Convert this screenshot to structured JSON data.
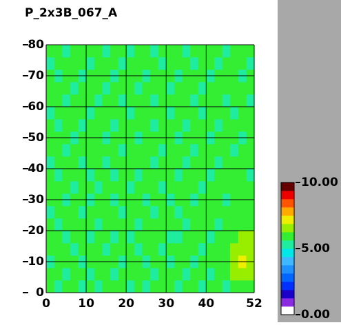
{
  "chart_data": {
    "type": "heatmap",
    "title": "P_2x3B_067_A",
    "xlim": [
      0,
      52
    ],
    "ylim": [
      0,
      80
    ],
    "xticks": [
      0,
      10,
      20,
      30,
      40,
      52
    ],
    "yticks": [
      0,
      10,
      20,
      30,
      40,
      50,
      60,
      70,
      80
    ],
    "grid": true,
    "values": [
      [
        5.7,
        5.5,
        5.8,
        5.9,
        5.6,
        5.7,
        5.4,
        5.8,
        5.9,
        5.7,
        5.6,
        5.8,
        5.5,
        5.9,
        5.7,
        5.8,
        5.6,
        5.7,
        5.9,
        5.5,
        5.8,
        5.7,
        5.6,
        5.9,
        6.0,
        5.8
      ],
      [
        5.8,
        5.9,
        5.6,
        5.7,
        5.8,
        5.5,
        5.9,
        5.7,
        5.6,
        5.8,
        5.9,
        5.7,
        5.8,
        5.6,
        5.9,
        5.7,
        5.8,
        5.5,
        5.7,
        5.9,
        5.6,
        5.8,
        6.0,
        6.6,
        6.8,
        6.3
      ],
      [
        5.6,
        5.8,
        5.9,
        5.7,
        5.5,
        5.8,
        5.7,
        5.9,
        5.8,
        5.6,
        5.7,
        5.9,
        5.6,
        5.8,
        5.7,
        5.5,
        5.9,
        5.8,
        5.6,
        5.7,
        5.9,
        5.8,
        5.9,
        6.7,
        6.9,
        6.5
      ],
      [
        5.9,
        5.7,
        5.8,
        5.6,
        5.9,
        5.7,
        5.8,
        5.6,
        5.7,
        5.9,
        5.8,
        5.5,
        5.9,
        5.7,
        5.6,
        5.8,
        5.7,
        5.9,
        5.8,
        5.6,
        5.7,
        5.9,
        6.1,
        6.5,
        6.7,
        6.4
      ],
      [
        5.7,
        5.8,
        5.5,
        5.9,
        5.7,
        5.6,
        5.9,
        5.8,
        5.5,
        5.7,
        5.6,
        5.8,
        5.7,
        5.9,
        5.8,
        5.6,
        5.5,
        5.7,
        5.9,
        5.8,
        5.6,
        5.7,
        5.8,
        6.2,
        6.5,
        6.3
      ],
      [
        5.8,
        5.6,
        5.9,
        5.7,
        5.8,
        5.9,
        5.6,
        5.7,
        5.8,
        5.9,
        5.7,
        5.6,
        5.8,
        5.7,
        5.9,
        5.8,
        5.7,
        5.6,
        5.8,
        5.7,
        5.9,
        5.6,
        5.8,
        5.9,
        6.1,
        5.9
      ],
      [
        5.6,
        5.9,
        5.7,
        5.8,
        5.6,
        5.7,
        5.8,
        5.9,
        5.7,
        5.6,
        5.8,
        5.9,
        5.7,
        5.5,
        5.8,
        5.9,
        5.6,
        5.8,
        5.7,
        5.9,
        5.8,
        5.7,
        5.9,
        5.8,
        6.0,
        5.8
      ],
      [
        5.9,
        5.7,
        5.6,
        5.8,
        5.9,
        5.5,
        5.7,
        5.8,
        5.6,
        5.9,
        5.7,
        5.8,
        5.6,
        5.9,
        5.7,
        5.6,
        5.8,
        5.9,
        5.5,
        5.8,
        5.7,
        5.9,
        5.6,
        5.8,
        5.9,
        5.7
      ],
      [
        5.7,
        5.8,
        5.9,
        5.6,
        5.7,
        5.8,
        5.6,
        5.9,
        5.8,
        5.7,
        5.5,
        5.7,
        5.9,
        5.8,
        5.6,
        5.7,
        5.9,
        5.7,
        5.8,
        5.6,
        5.9,
        5.8,
        5.7,
        5.9,
        5.8,
        5.9
      ],
      [
        5.8,
        5.6,
        5.7,
        5.9,
        5.8,
        5.6,
        5.9,
        5.7,
        5.6,
        5.8,
        5.9,
        5.6,
        5.7,
        5.8,
        5.9,
        5.7,
        5.5,
        5.8,
        5.9,
        5.7,
        5.6,
        5.8,
        5.9,
        5.7,
        5.8,
        5.6
      ],
      [
        5.6,
        5.9,
        5.8,
        5.7,
        5.5,
        5.9,
        5.8,
        5.6,
        5.7,
        5.9,
        5.8,
        5.7,
        5.9,
        5.6,
        5.8,
        5.9,
        5.7,
        5.6,
        5.8,
        5.9,
        5.7,
        5.6,
        5.8,
        5.9,
        5.7,
        5.8
      ],
      [
        5.9,
        5.7,
        5.6,
        5.8,
        5.7,
        5.8,
        5.7,
        5.9,
        5.8,
        5.6,
        5.7,
        5.9,
        5.8,
        5.7,
        5.6,
        5.8,
        5.9,
        5.7,
        5.6,
        5.8,
        5.9,
        5.7,
        5.8,
        5.6,
        5.9,
        5.7
      ],
      [
        5.7,
        5.8,
        5.9,
        5.6,
        5.8,
        5.7,
        5.9,
        5.5,
        5.9,
        5.7,
        5.8,
        5.6,
        5.7,
        5.9,
        5.8,
        5.7,
        5.6,
        5.9,
        5.8,
        5.7,
        5.5,
        5.9,
        5.7,
        5.8,
        5.6,
        5.9
      ],
      [
        5.8,
        5.6,
        5.7,
        5.9,
        5.6,
        5.8,
        5.7,
        5.8,
        5.6,
        5.9,
        5.7,
        5.8,
        5.9,
        5.6,
        5.7,
        5.9,
        5.8,
        5.6,
        5.7,
        5.9,
        5.8,
        5.6,
        5.9,
        5.7,
        5.8,
        5.7
      ],
      [
        5.6,
        5.9,
        5.8,
        5.7,
        5.9,
        5.6,
        5.8,
        5.7,
        5.9,
        5.8,
        5.6,
        5.7,
        5.8,
        5.9,
        5.7,
        5.6,
        5.8,
        5.9,
        5.7,
        5.6,
        5.8,
        5.9,
        5.7,
        5.6,
        5.9,
        5.8
      ],
      [
        5.9,
        5.7,
        5.6,
        5.8,
        5.7,
        5.9,
        5.6,
        5.8,
        5.7,
        5.6,
        5.9,
        5.8,
        5.7,
        5.6,
        5.8,
        5.9,
        5.7,
        5.8,
        5.6,
        5.9,
        5.7,
        5.8,
        5.6,
        5.9,
        5.7,
        5.6
      ],
      [
        5.7,
        5.8,
        5.9,
        5.6,
        5.8,
        5.7,
        5.9,
        5.6,
        5.8,
        5.7,
        5.8,
        5.6,
        5.9,
        5.8,
        5.7,
        5.6,
        5.9,
        5.7,
        5.8,
        5.6,
        5.9,
        5.7,
        5.8,
        5.7,
        5.8,
        5.9
      ],
      [
        5.8,
        5.6,
        5.7,
        5.9,
        5.6,
        5.8,
        5.7,
        5.9,
        5.6,
        5.8,
        5.7,
        5.9,
        5.6,
        5.7,
        5.9,
        5.8,
        5.6,
        5.7,
        5.9,
        5.8,
        5.6,
        5.8,
        5.7,
        5.9,
        5.6,
        5.8
      ],
      [
        5.6,
        5.9,
        5.8,
        5.7,
        5.9,
        5.6,
        5.8,
        5.7,
        5.9,
        5.6,
        5.8,
        5.7,
        5.9,
        5.8,
        5.6,
        5.7,
        5.8,
        5.9,
        5.6,
        5.7,
        5.8,
        5.6,
        5.9,
        5.7,
        5.8,
        5.6
      ],
      [
        5.9,
        5.7,
        5.6,
        5.8,
        5.7,
        5.9,
        5.8,
        5.6,
        5.7,
        5.9,
        5.6,
        5.8,
        5.7,
        5.6,
        5.9,
        5.8,
        5.7,
        5.6,
        5.8,
        5.9,
        5.7,
        5.9,
        5.6,
        5.8,
        5.7,
        5.9
      ]
    ],
    "colorbar": {
      "lim": [
        0,
        10
      ],
      "ticks": [
        {
          "value": 0,
          "label": "0.00"
        },
        {
          "value": 5,
          "label": "5.00"
        },
        {
          "value": 10,
          "label": "10.00"
        }
      ],
      "colors": [
        "#ffffff",
        "#8a2be2",
        "#1a00c8",
        "#0030ff",
        "#0066ff",
        "#1e90ff",
        "#3fb8ff",
        "#00e8e8",
        "#20eca0",
        "#33ee33",
        "#99ee00",
        "#eeee00",
        "#ffaa00",
        "#ff5500",
        "#ee0000",
        "#660000"
      ]
    }
  }
}
